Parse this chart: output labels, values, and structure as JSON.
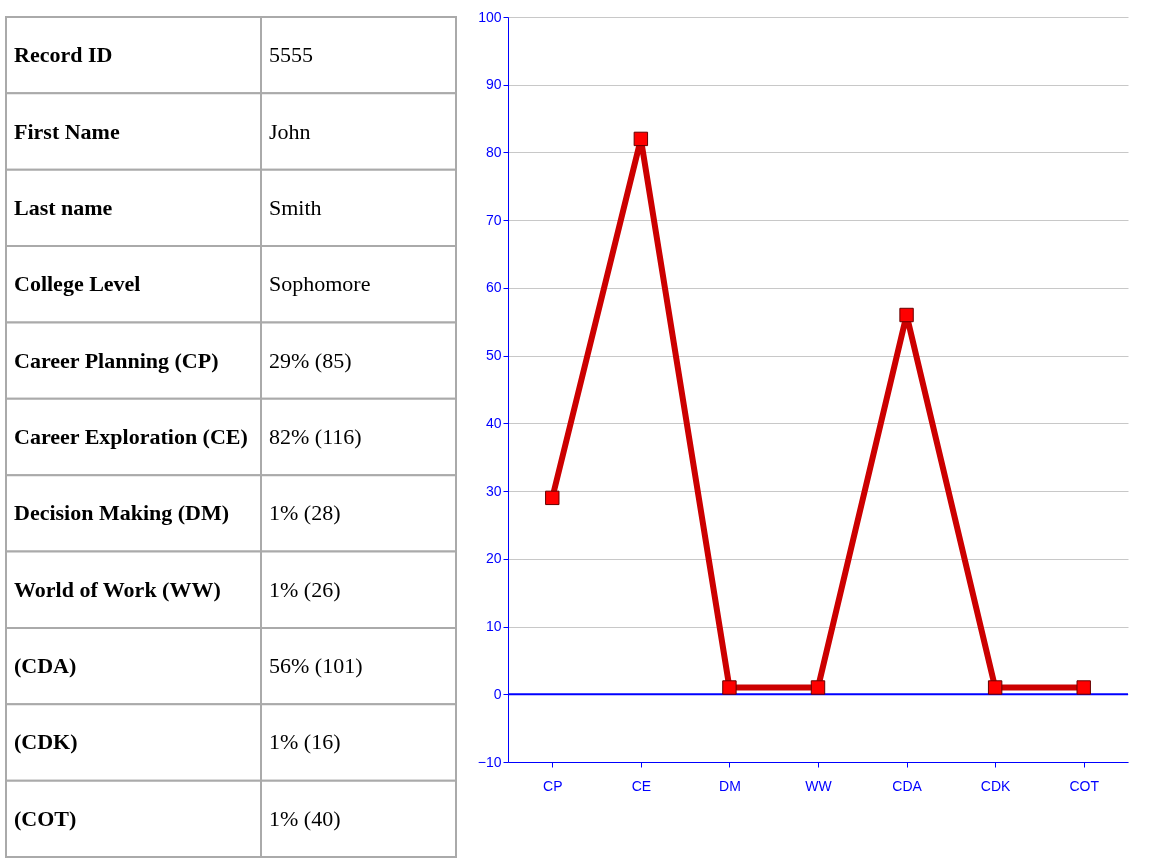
{
  "chart_data": [
    {
      "type": "other",
      "annotations": [
        "Record ID",
        "5555",
        "First Name",
        "John",
        "Last name",
        "Smith",
        "College Level",
        "Sophomore",
        "Career Planning (CP)",
        "29% (85)",
        "Career Exploration (CE)",
        "82% (116)",
        "Decision Making (DM)",
        "1% (28)",
        "World of Work (WW)",
        "1% (26)",
        "(CDA)",
        "56% (101)",
        "(CDK)",
        "1% (16)",
        "(COT)",
        "1% (40)"
      ]
    },
    {
      "type": "line",
      "categories": [
        "CP",
        "CE",
        "DM",
        "WW",
        "CDA",
        "CDK",
        "COT"
      ],
      "series": [
        {
          "color": "#cc0000",
          "values": [
            29,
            82,
            1,
            1,
            56,
            1,
            1
          ]
        }
      ],
      "marker": "square",
      "line_style": "solid",
      "ylim": [
        -10,
        100
      ],
      "yticks": [
        -10,
        0,
        10,
        20,
        30,
        40,
        50,
        60,
        70,
        80,
        90,
        100
      ],
      "grid": "y",
      "ref_lines": [
        {
          "axis": "y",
          "value": 0,
          "color": "#0000ff"
        }
      ]
    }
  ]
}
